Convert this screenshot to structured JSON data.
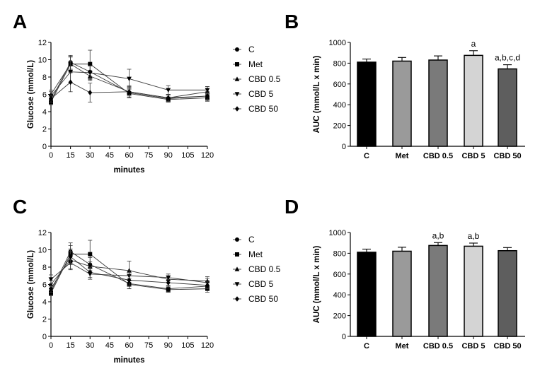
{
  "panels": {
    "A": "A",
    "B": "B",
    "C": "C",
    "D": "D"
  },
  "legend": [
    "C",
    "Met",
    "CBD 0.5",
    "CBD 5",
    "CBD 50"
  ],
  "chart_data": [
    {
      "panel": "A",
      "type": "line",
      "xlabel": "minutes",
      "ylabel": "Glucose (mmol/L)",
      "x": [
        0,
        15,
        30,
        60,
        90,
        120
      ],
      "xticks": [
        "0",
        "15",
        "30",
        "45",
        "60",
        "75",
        "90",
        "105",
        "120"
      ],
      "yticks": [
        "0",
        "2",
        "4",
        "6",
        "8",
        "10",
        "12"
      ],
      "xlim": [
        0,
        120
      ],
      "ylim": [
        0,
        12
      ],
      "legend_position": "right",
      "series": [
        {
          "name": "C",
          "marker": "circle",
          "values": [
            5.3,
            9.7,
            8.6,
            6.2,
            5.5,
            5.8
          ],
          "err": [
            0.4,
            0.8,
            0.8,
            0.6,
            0.4,
            0.5
          ]
        },
        {
          "name": "Met",
          "marker": "square",
          "values": [
            5.1,
            9.5,
            9.5,
            6.1,
            5.4,
            5.6
          ],
          "err": [
            0.3,
            0.8,
            1.6,
            0.5,
            0.3,
            0.4
          ]
        },
        {
          "name": "CBD 0.5",
          "marker": "triangle-up",
          "values": [
            6.0,
            9.5,
            8.1,
            6.3,
            5.6,
            6.3
          ],
          "err": [
            0.5,
            0.9,
            0.5,
            0.6,
            0.4,
            0.6
          ]
        },
        {
          "name": "CBD 5",
          "marker": "triangle-down",
          "values": [
            5.8,
            8.6,
            8.5,
            7.8,
            6.5,
            6.5
          ],
          "err": [
            0.5,
            1.2,
            0.8,
            1.1,
            0.5,
            0.4
          ]
        },
        {
          "name": "CBD 50",
          "marker": "diamond",
          "values": [
            5.5,
            7.4,
            6.2,
            6.3,
            5.6,
            5.8
          ],
          "err": [
            0.4,
            1.1,
            1.1,
            0.7,
            0.4,
            0.4
          ]
        }
      ]
    },
    {
      "panel": "B",
      "type": "bar",
      "ylabel": "AUC (mmol/L x min)",
      "categories": [
        "C",
        "Met",
        "CBD 0.5",
        "CBD 5",
        "CBD 50"
      ],
      "values": [
        810,
        820,
        830,
        875,
        745
      ],
      "err": [
        30,
        35,
        40,
        45,
        40
      ],
      "annotations": [
        "",
        "",
        "",
        "a",
        "a,b,c,d"
      ],
      "colors": [
        "#000000",
        "#9a9a9a",
        "#7a7a7a",
        "#d4d4d4",
        "#5e5e5e"
      ],
      "yticks": [
        "0",
        "200",
        "400",
        "600",
        "800",
        "1000"
      ],
      "ylim": [
        0,
        1000
      ]
    },
    {
      "panel": "C",
      "type": "line",
      "xlabel": "minutes",
      "ylabel": "Glucose (mmol/L)",
      "x": [
        0,
        15,
        30,
        60,
        90,
        120
      ],
      "xticks": [
        "0",
        "15",
        "30",
        "45",
        "60",
        "75",
        "90",
        "105",
        "120"
      ],
      "yticks": [
        "0",
        "2",
        "4",
        "6",
        "8",
        "10",
        "12"
      ],
      "xlim": [
        0,
        120
      ],
      "ylim": [
        0,
        12
      ],
      "legend_position": "right",
      "series": [
        {
          "name": "C",
          "marker": "circle",
          "values": [
            5.2,
            9.8,
            8.3,
            6.1,
            5.5,
            5.8
          ],
          "err": [
            0.4,
            1.0,
            0.8,
            0.6,
            0.4,
            0.5
          ]
        },
        {
          "name": "Met",
          "marker": "square",
          "values": [
            5.0,
            9.5,
            9.5,
            6.0,
            5.4,
            5.5
          ],
          "err": [
            0.3,
            1.0,
            1.6,
            0.5,
            0.3,
            0.4
          ]
        },
        {
          "name": "CBD 0.5",
          "marker": "triangle-up",
          "values": [
            6.0,
            8.8,
            8.1,
            7.6,
            6.6,
            6.4
          ],
          "err": [
            0.5,
            1.0,
            0.5,
            1.1,
            0.4,
            0.5
          ]
        },
        {
          "name": "CBD 5",
          "marker": "triangle-down",
          "values": [
            6.6,
            8.5,
            7.2,
            7.0,
            6.8,
            6.2
          ],
          "err": [
            0.5,
            0.8,
            0.6,
            0.6,
            0.4,
            0.5
          ]
        },
        {
          "name": "CBD 50",
          "marker": "diamond",
          "values": [
            5.5,
            9.2,
            7.4,
            6.5,
            6.2,
            5.9
          ],
          "err": [
            0.4,
            0.9,
            0.6,
            0.6,
            0.4,
            0.4
          ]
        }
      ]
    },
    {
      "panel": "D",
      "type": "bar",
      "ylabel": "AUC (mmol/L x min)",
      "categories": [
        "C",
        "Met",
        "CBD 0.5",
        "CBD 5",
        "CBD 50"
      ],
      "values": [
        810,
        820,
        875,
        868,
        825
      ],
      "err": [
        30,
        38,
        28,
        30,
        30
      ],
      "annotations": [
        "",
        "",
        "a,b",
        "a,b",
        ""
      ],
      "colors": [
        "#000000",
        "#9a9a9a",
        "#7a7a7a",
        "#d4d4d4",
        "#5e5e5e"
      ],
      "yticks": [
        "0",
        "200",
        "400",
        "600",
        "800",
        "1000"
      ],
      "ylim": [
        0,
        1000
      ]
    }
  ]
}
